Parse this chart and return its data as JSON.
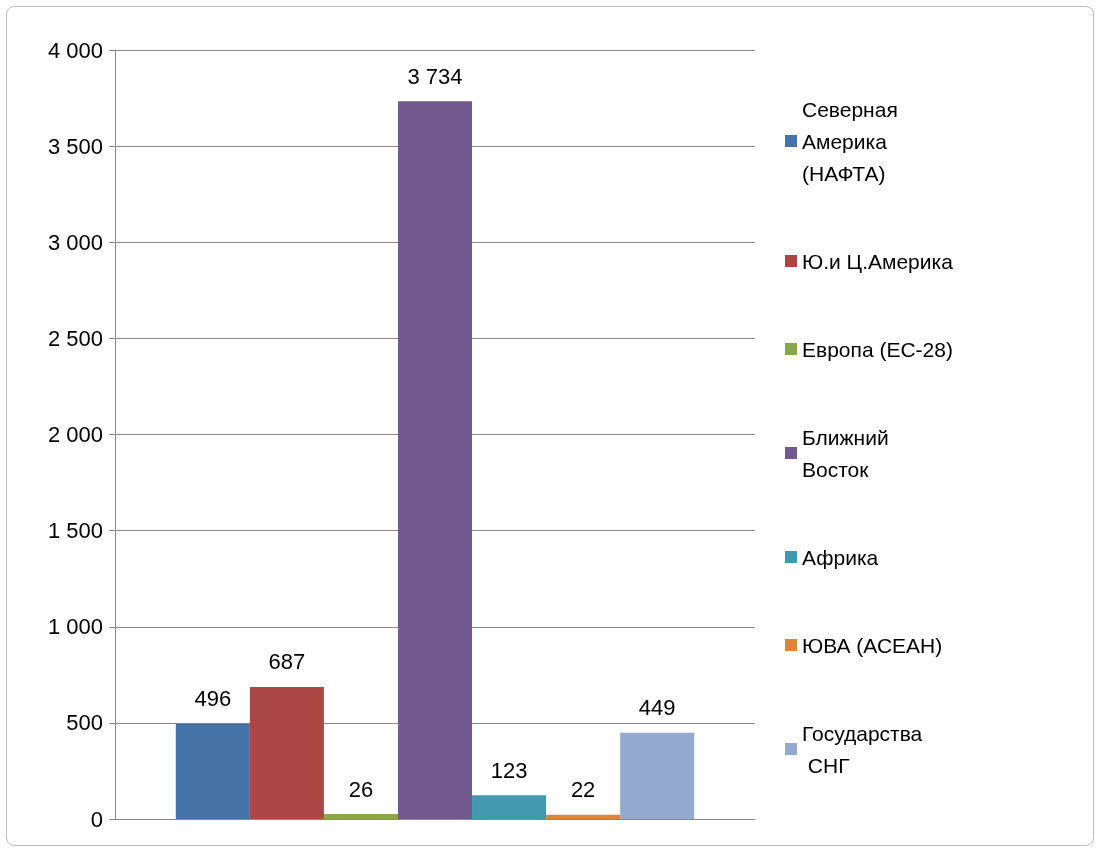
{
  "chart_data": {
    "type": "bar",
    "categories": [
      null
    ],
    "series": [
      {
        "name": "Северная Америка (НАФТА)",
        "color": "#4572a7",
        "values": [
          496
        ],
        "value_labels": [
          "496"
        ]
      },
      {
        "name": "Ю.и Ц.Америка",
        "color": "#aa4643",
        "values": [
          687
        ],
        "value_labels": [
          "687"
        ]
      },
      {
        "name": "Европа (ЕС-28)",
        "color": "#89a54e",
        "values": [
          26
        ],
        "value_labels": [
          "26"
        ]
      },
      {
        "name": "Ближний Восток",
        "color": "#71588f",
        "values": [
          3734
        ],
        "value_labels": [
          "3 734"
        ]
      },
      {
        "name": "Африка",
        "color": "#4198af",
        "values": [
          123
        ],
        "value_labels": [
          "123"
        ]
      },
      {
        "name": "ЮВА (АСЕАН)",
        "color": "#db843d",
        "values": [
          22
        ],
        "value_labels": [
          "22"
        ]
      },
      {
        "name": "Государства СНГ",
        "color": "#93a9cf",
        "values": [
          449
        ],
        "value_labels": [
          "449"
        ]
      }
    ],
    "ylim": [
      0,
      4000
    ],
    "yticks": [
      0,
      500,
      {
        "value": 1000,
        "label": "1 000"
      },
      {
        "value": 1500,
        "label": "1 500"
      },
      {
        "value": 2000,
        "label": "2 000"
      },
      {
        "value": 2500,
        "label": "2 500"
      },
      {
        "value": 3000,
        "label": "3 000"
      },
      {
        "value": 3500,
        "label": "3 500"
      },
      {
        "value": 4000,
        "label": "4 000"
      }
    ],
    "grid": "y",
    "legend": "right"
  }
}
